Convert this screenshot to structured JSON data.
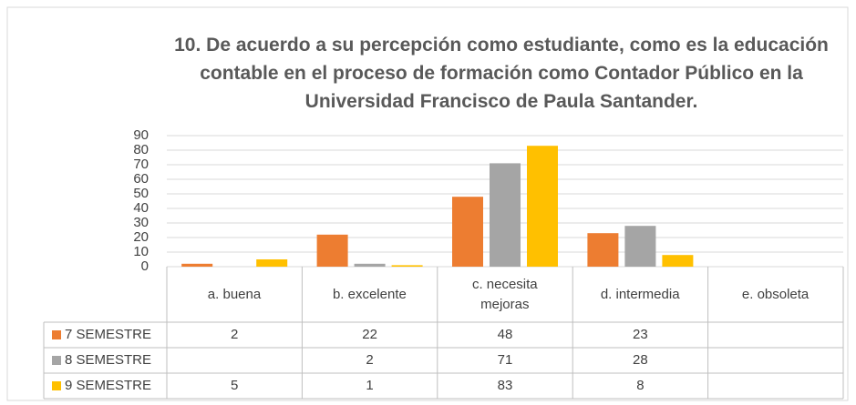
{
  "chart_data": {
    "type": "bar",
    "title": "10. De acuerdo a su percepción como estudiante, como es la educación contable en el proceso de formación como Contador Público en la Universidad Francisco de Paula Santander.",
    "categories": [
      "a. buena",
      "b. excelente",
      "c. necesita mejoras",
      "d. intermedia",
      "e. obsoleta"
    ],
    "series": [
      {
        "name": "7 SEMESTRE",
        "color": "#ed7d31",
        "values": [
          2,
          22,
          48,
          23,
          null
        ]
      },
      {
        "name": "8 SEMESTRE",
        "color": "#a5a5a5",
        "values": [
          null,
          2,
          71,
          28,
          null
        ]
      },
      {
        "name": "9 SEMESTRE",
        "color": "#ffc000",
        "values": [
          5,
          1,
          83,
          8,
          null
        ]
      }
    ],
    "ylim": [
      0,
      90
    ],
    "yticks": [
      0,
      10,
      20,
      30,
      40,
      50,
      60,
      70,
      80,
      90
    ],
    "grid": true
  }
}
